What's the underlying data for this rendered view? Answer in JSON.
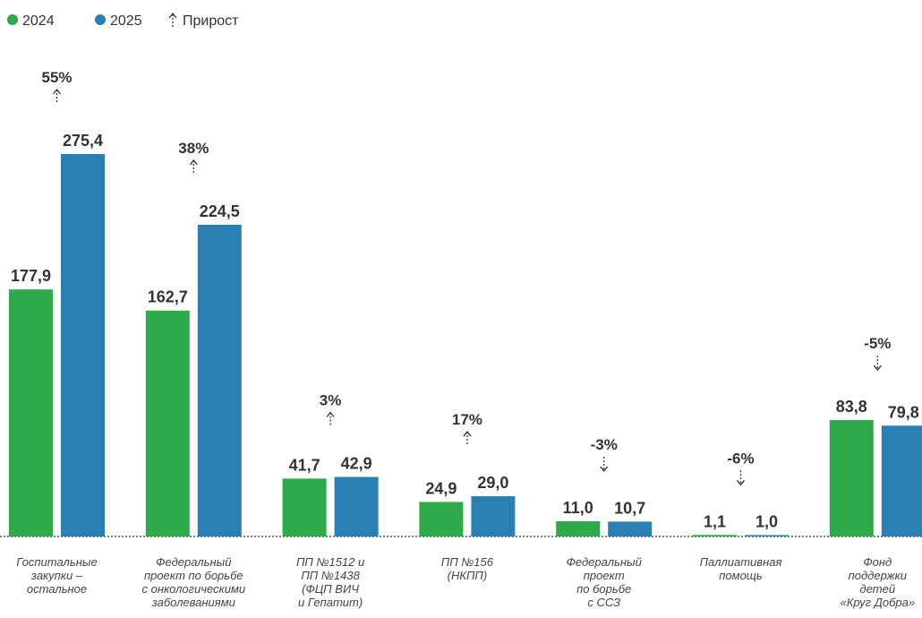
{
  "chart_data": {
    "type": "bar",
    "categories": [
      [
        "Госпитальные",
        "закупки –",
        "остальное"
      ],
      [
        "Федеральный",
        "проект по борьбе",
        "с онкологическими",
        "заболеваниями"
      ],
      [
        "ПП №1512 и",
        "ПП №1438",
        "(ФЦП ВИЧ",
        "и Гепатит)"
      ],
      [
        "ПП №156",
        "(НКПП)"
      ],
      [
        "Федеральный",
        "проект",
        "по борьбе",
        "с ССЗ"
      ],
      [
        "Паллиативная",
        "помощь"
      ],
      [
        "Фонд",
        "поддержки",
        "детей",
        "«Круг Добра»"
      ]
    ],
    "series": [
      {
        "name": "2024",
        "color": "#2eaa4a",
        "values": [
          177.9,
          162.7,
          41.7,
          24.9,
          11.0,
          1.1,
          83.8
        ],
        "value_labels": [
          "177,9",
          "162,7",
          "41,7",
          "24,9",
          "11,0",
          "1,1",
          "83,8"
        ]
      },
      {
        "name": "2025",
        "color": "#2a7fb5",
        "values": [
          275.4,
          224.5,
          42.9,
          29.0,
          10.7,
          1.0,
          79.8
        ],
        "value_labels": [
          "275,4",
          "224,5",
          "42,9",
          "29,0",
          "10,7",
          "1,0",
          "79,8"
        ]
      }
    ],
    "growth_name": "Прирост",
    "growth": [
      55,
      38,
      3,
      17,
      -3,
      -6,
      -5
    ],
    "growth_labels": [
      "55%",
      "38%",
      "3%",
      "17%",
      "-3%",
      "-6%",
      "-5%"
    ]
  }
}
